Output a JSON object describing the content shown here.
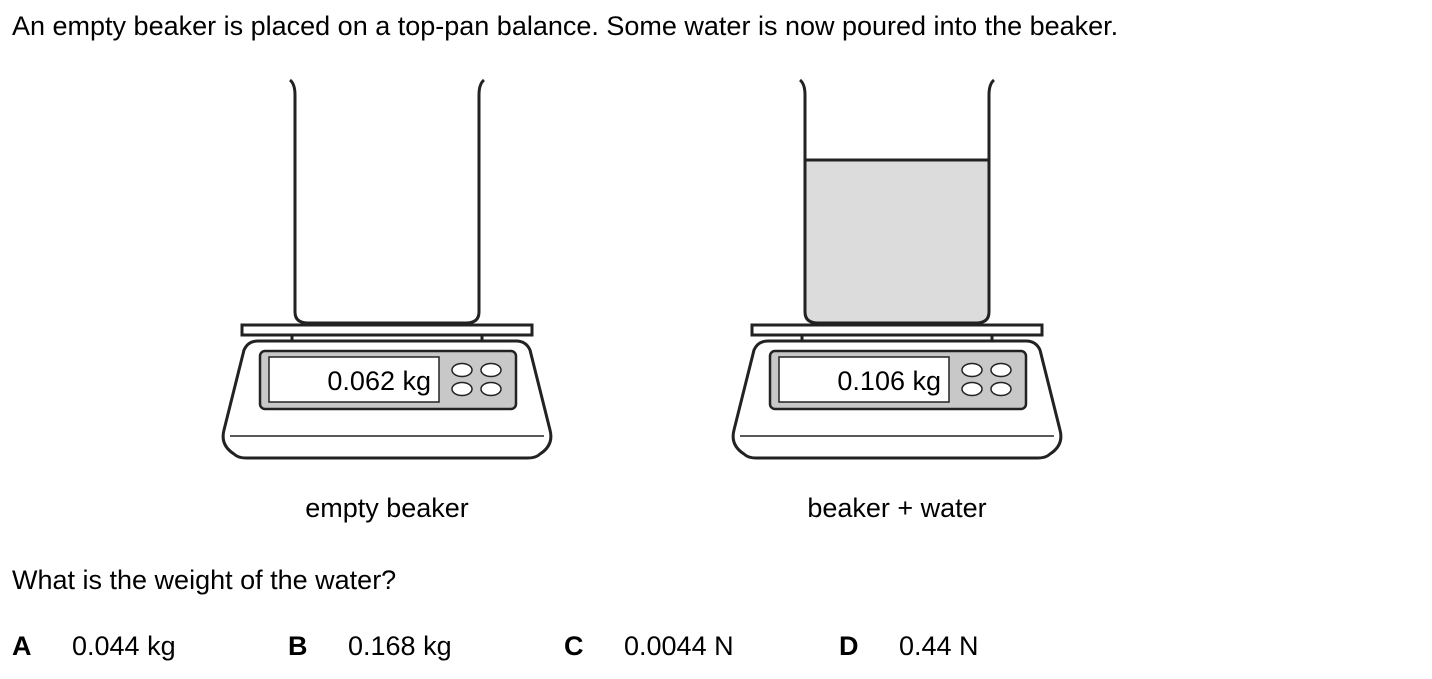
{
  "intro_text": "An empty beaker is placed on a top-pan balance. Some water is now poured into the beaker.",
  "balances": [
    {
      "reading": "0.062 kg",
      "caption": "empty beaker"
    },
    {
      "reading": "0.106 kg",
      "caption": "beaker + water"
    }
  ],
  "question": "What is the weight of the water?",
  "options": [
    {
      "letter": "A",
      "text": "0.044 kg"
    },
    {
      "letter": "B",
      "text": "0.168 kg"
    },
    {
      "letter": "C",
      "text": "0.0044 N"
    },
    {
      "letter": "D",
      "text": "0.44 N"
    }
  ],
  "colors": {
    "outline": "#222222",
    "panel": "#c8c8c8",
    "water": "#dcdcdc",
    "display_bg": "#ffffff"
  }
}
